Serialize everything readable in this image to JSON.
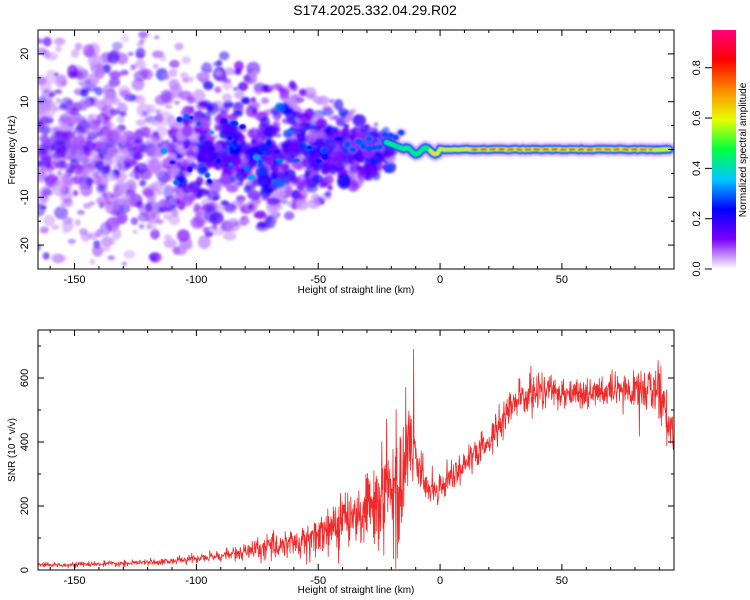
{
  "title": "S174.2025.332.04.29.R02",
  "colors": {
    "snr_line": "#ee2a2a",
    "axis": "#000000"
  },
  "chart_data": [
    {
      "type": "heatmap",
      "name": "spectrogram",
      "xlabel": "Height of straight line (km)",
      "ylabel": "Frequency (Hz)",
      "xlim": [
        -165,
        96
      ],
      "ylim": [
        -25,
        25
      ],
      "x_ticks": [
        "-150",
        "-100",
        "-50",
        "0",
        "50"
      ],
      "x_tick_values": [
        -150,
        -100,
        -50,
        0,
        50
      ],
      "y_ticks": [
        "20",
        "10",
        "0",
        "-10",
        "-20"
      ],
      "y_tick_values": [
        20,
        10,
        0,
        -10,
        -20
      ],
      "description_values": {
        "noisy_region_km": [
          -165,
          -30
        ],
        "converging_region_km": [
          -50,
          -15
        ],
        "stable_tone_region_km": [
          -15,
          95
        ],
        "stable_tone_frequency_hz": 0
      },
      "colorbar": {
        "label": "Normalized spectral amplitude",
        "range": [
          0.0,
          0.95
        ],
        "ticks": [
          "0.0",
          "0.2",
          "0.4",
          "0.6",
          "0.8"
        ],
        "tick_values": [
          0.0,
          0.2,
          0.4,
          0.6,
          0.8
        ],
        "colormap": [
          "#ffffff",
          "#7a00ff",
          "#0000ff",
          "#00c8ff",
          "#00ff40",
          "#e8ff00",
          "#ff8800",
          "#ff0000",
          "#ff0080"
        ]
      }
    },
    {
      "type": "line",
      "name": "snr",
      "xlabel": "Height of straight line (km)",
      "ylabel": "SNR (10 * v/v)",
      "xlim": [
        -165,
        96
      ],
      "ylim": [
        0,
        750
      ],
      "x_ticks": [
        "-150",
        "-100",
        "-50",
        "0",
        "50"
      ],
      "x_tick_values": [
        -150,
        -100,
        -50,
        0,
        50
      ],
      "y_ticks": [
        "0",
        "200",
        "400",
        "600"
      ],
      "y_tick_values": [
        0,
        200,
        400,
        600
      ],
      "trend": {
        "x": [
          -165,
          -130,
          -110,
          -95,
          -80,
          -65,
          -55,
          -45,
          -35,
          -25,
          -18,
          -12,
          -8,
          -5,
          0,
          5,
          10,
          15,
          20,
          25,
          30,
          35,
          40,
          50,
          60,
          70,
          80,
          88,
          92,
          96
        ],
        "y": [
          15,
          20,
          28,
          40,
          55,
          80,
          110,
          150,
          200,
          270,
          300,
          380,
          310,
          250,
          260,
          300,
          330,
          360,
          400,
          460,
          520,
          540,
          560,
          560,
          550,
          555,
          560,
          570,
          520,
          420
        ]
      },
      "noise_amplitude": {
        "x": [
          -165,
          -120,
          -90,
          -60,
          -40,
          -25,
          -15,
          -10,
          -5,
          0,
          20,
          40,
          60,
          80,
          96
        ],
        "y": [
          6,
          8,
          15,
          45,
          70,
          110,
          200,
          60,
          50,
          40,
          55,
          55,
          45,
          50,
          90
        ]
      }
    }
  ]
}
